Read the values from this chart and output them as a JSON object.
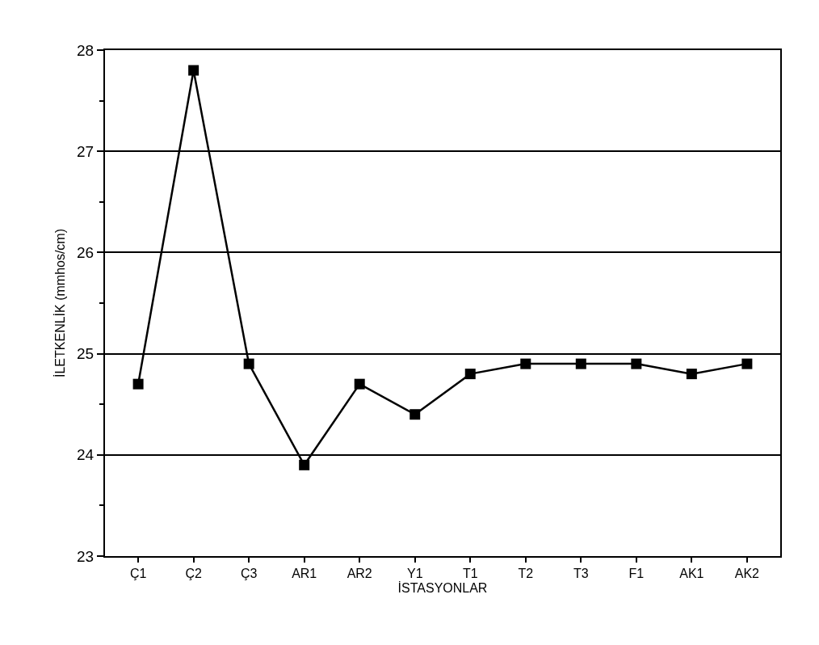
{
  "chart_data": {
    "type": "line",
    "xlabel": "İSTASYONLAR",
    "ylabel": "İLETKENLİK (mmhos/cm)",
    "categories": [
      "Ç1",
      "Ç2",
      "Ç3",
      "AR1",
      "AR2",
      "Y1",
      "T1",
      "T2",
      "T3",
      "F1",
      "AK1",
      "AK2"
    ],
    "series": [
      {
        "color": "#000000",
        "values": [
          24.7,
          27.8,
          24.9,
          23.9,
          24.7,
          24.4,
          24.8,
          24.9,
          24.9,
          24.9,
          24.8,
          24.9
        ]
      }
    ],
    "ylim": [
      23,
      28
    ],
    "yticks": [
      23,
      24,
      25,
      26,
      27,
      28
    ],
    "grid": "y",
    "marker": "square",
    "line_style": "solid",
    "legend": false
  }
}
